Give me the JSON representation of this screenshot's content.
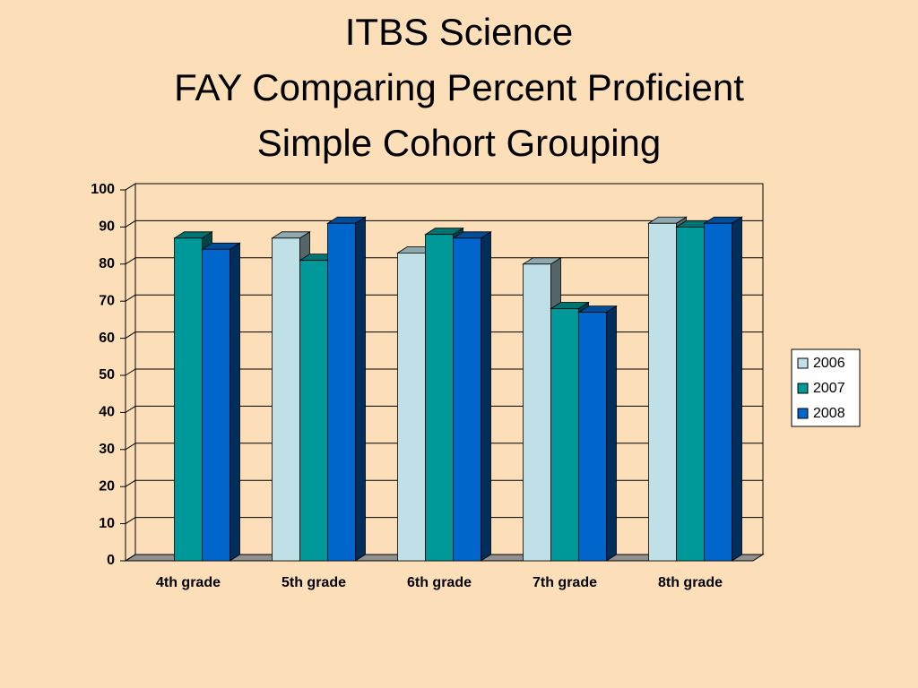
{
  "chart_data": {
    "type": "bar3d",
    "title": [
      "ITBS Science",
      "FAY Comparing Percent Proficient",
      "Simple Cohort Grouping"
    ],
    "categories": [
      "4th grade",
      "5th grade",
      "6th grade",
      "7th grade",
      "8th grade"
    ],
    "series": [
      {
        "name": "2006",
        "color": "#bfe0e6",
        "values": [
          null,
          87,
          83,
          80,
          91
        ]
      },
      {
        "name": "2007",
        "color": "#009999",
        "values": [
          87,
          81,
          88,
          68,
          90
        ]
      },
      {
        "name": "2008",
        "color": "#0066cc",
        "values": [
          84,
          91,
          87,
          67,
          91
        ]
      }
    ],
    "ylim": [
      0,
      100
    ],
    "yticks": [
      0,
      10,
      20,
      30,
      40,
      50,
      60,
      70,
      80,
      90,
      100
    ],
    "grid": true,
    "legend": "right"
  }
}
